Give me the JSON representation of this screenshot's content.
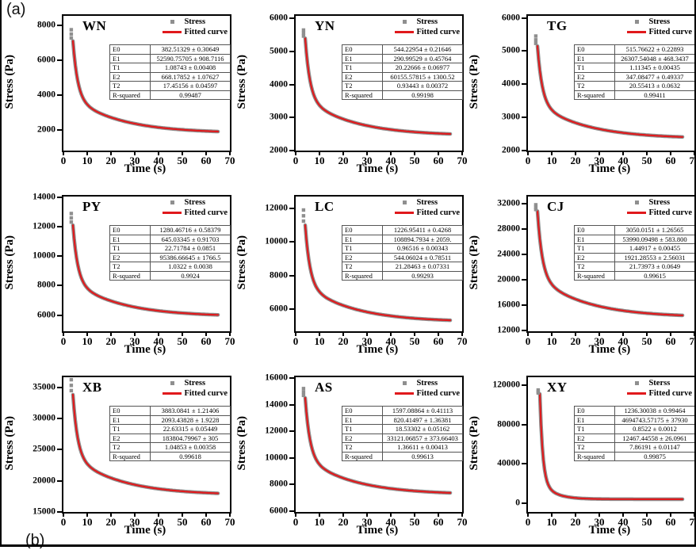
{
  "figure": {
    "panel_label_a": "(a)",
    "panel_label_b": "(b)"
  },
  "colors": {
    "fitted": "#e0191c",
    "stress_marker": "#8f8f8f",
    "axis": "#000000"
  },
  "axes_common": {
    "x_label": "Time (s)",
    "y_label": "Stress (Pa)",
    "x_range": [
      0,
      70
    ],
    "x_ticks": [
      0,
      10,
      20,
      30,
      40,
      50,
      60,
      70
    ]
  },
  "table_param_names": [
    "E0",
    "E1",
    "T1",
    "E2",
    "T2",
    "R-squared"
  ],
  "chart_data": [
    {
      "type": "line",
      "name": "WN",
      "legend_stress": "Stress",
      "legend_fitted": "Fitted curve",
      "y_ticks": [
        2000,
        4000,
        6000,
        8000
      ],
      "y_range": [
        800,
        8550
      ],
      "table": [
        [
          "E0",
          "382.51329 ± 0.30649"
        ],
        [
          "E1",
          "52590.75705 ± 908.7116"
        ],
        [
          "T1",
          "1.08743 ± 0.00408"
        ],
        [
          "E2",
          "668.17852 ± 1.07627"
        ],
        [
          "T2",
          "17.45156 ± 0.04597"
        ],
        [
          "R-squared",
          "0.99487"
        ]
      ],
      "curve": {
        "t0": 4,
        "t1": 65,
        "peak": 7750,
        "start": 7100,
        "end": 1800,
        "tau1": 2.0,
        "tau2": 20,
        "w": 0.62
      }
    },
    {
      "type": "line",
      "name": "YN",
      "legend_stress": "Stress",
      "legend_fitted": "Fitted curve",
      "y_ticks": [
        2000,
        3000,
        4000,
        5000,
        6000
      ],
      "y_range": [
        2000,
        6080
      ],
      "table": [
        [
          "E0",
          "544.22954 ± 0.21646"
        ],
        [
          "E1",
          "290.99529 ± 0.45764"
        ],
        [
          "T1",
          "20.22666 ± 0.06977"
        ],
        [
          "E2",
          "60155.57815 ± 1300.52"
        ],
        [
          "T2",
          "0.93443 ± 0.00372"
        ],
        [
          "R-squared",
          "0.99198"
        ]
      ],
      "curve": {
        "t0": 4,
        "t1": 65,
        "peak": 5650,
        "start": 5400,
        "end": 2450,
        "tau1": 2.0,
        "tau2": 20,
        "w": 0.62
      }
    },
    {
      "type": "line",
      "name": "TG",
      "legend_stress": "Stress",
      "legend_fitted": "Fitted curve",
      "y_ticks": [
        2000,
        3000,
        4000,
        5000,
        6000
      ],
      "y_range": [
        2000,
        6060
      ],
      "table": [
        [
          "E0",
          "515.76622 ± 0.22893"
        ],
        [
          "E1",
          "26307.54048 ± 468.3437"
        ],
        [
          "T1",
          "1.11345 ± 0.00435"
        ],
        [
          "E2",
          "347.08477 ± 0.49337"
        ],
        [
          "T2",
          "20.55413 ± 0.0632"
        ],
        [
          "R-squared",
          "0.99411"
        ]
      ],
      "curve": {
        "t0": 4,
        "t1": 65,
        "peak": 5450,
        "start": 5150,
        "end": 2360,
        "tau1": 2.0,
        "tau2": 20,
        "w": 0.62
      }
    },
    {
      "type": "line",
      "name": "PY",
      "legend_stress": "Stress",
      "legend_fitted": "Fitted curve",
      "y_ticks": [
        6000,
        8000,
        10000,
        12000,
        14000
      ],
      "y_range": [
        4900,
        14050
      ],
      "table": [
        [
          "E0",
          "1280.46716 ± 0.58379"
        ],
        [
          "E1",
          "645.03345 ± 0.91703"
        ],
        [
          "T1",
          "22.71784 ± 0.0851"
        ],
        [
          "E2",
          "95386.66645 ± 1766.5"
        ],
        [
          "T2",
          "1.0322 ± 0.0038"
        ],
        [
          "R-squared",
          "0.9924"
        ]
      ],
      "curve": {
        "t0": 4,
        "t1": 65,
        "peak": 12900,
        "start": 12100,
        "end": 5900,
        "tau1": 2.0,
        "tau2": 20,
        "w": 0.62
      }
    },
    {
      "type": "line",
      "name": "LC",
      "legend_stress": "Stress",
      "legend_fitted": "Fitted curve",
      "y_ticks": [
        6000,
        8000,
        10000,
        12000
      ],
      "y_range": [
        4700,
        12700
      ],
      "table": [
        [
          "E0",
          "1226.95411 ± 0.4268"
        ],
        [
          "E1",
          "108894.7934 ± 2059."
        ],
        [
          "T1",
          "0.96516 ± 0.00343"
        ],
        [
          "E2",
          "544.06024 ± 0.78511"
        ],
        [
          "T2",
          "21.28463 ± 0.07331"
        ],
        [
          "R-squared",
          "0.99293"
        ]
      ],
      "curve": {
        "t0": 4,
        "t1": 65,
        "peak": 11900,
        "start": 11000,
        "end": 5250,
        "tau1": 2.0,
        "tau2": 20,
        "w": 0.62
      }
    },
    {
      "type": "line",
      "name": "CJ",
      "legend_stress": "Stress",
      "legend_fitted": "Fitted curve",
      "y_ticks": [
        12000,
        16000,
        20000,
        24000,
        28000,
        32000
      ],
      "y_range": [
        11900,
        33100
      ],
      "table": [
        [
          "E0",
          "3050.0151 ± 1.26565"
        ],
        [
          "E1",
          "53990.09498 ± 583.800"
        ],
        [
          "T1",
          "1.44917 ± 0.00455"
        ],
        [
          "E2",
          "1921.28553 ± 2.56031"
        ],
        [
          "T2",
          "21.73973 ± 0.0649"
        ],
        [
          "R-squared",
          "0.99615"
        ]
      ],
      "curve": {
        "t0": 4,
        "t1": 65,
        "peak": 31800,
        "start": 30800,
        "end": 14100,
        "tau1": 2.0,
        "tau2": 20,
        "w": 0.62
      }
    },
    {
      "type": "line",
      "name": "XB",
      "legend_stress": "Stress",
      "legend_fitted": "Fitted curve",
      "y_ticks": [
        15000,
        20000,
        25000,
        30000,
        35000
      ],
      "y_range": [
        15000,
        36600
      ],
      "table": [
        [
          "E0",
          "3883.0841 ± 1.21406"
        ],
        [
          "E1",
          "2093.43828 ± 1.9228"
        ],
        [
          "T1",
          "22.63315 ± 0.05449"
        ],
        [
          "E2",
          "183804.79967 ± 305"
        ],
        [
          "T2",
          "1.04853 ± 0.00358"
        ],
        [
          "R-squared",
          "0.99618"
        ]
      ],
      "curve": {
        "t0": 4,
        "t1": 65,
        "peak": 36200,
        "start": 33800,
        "end": 17700,
        "tau1": 2.0,
        "tau2": 20,
        "w": 0.62
      }
    },
    {
      "type": "line",
      "name": "AS",
      "legend_stress": "Stress",
      "legend_fitted": "Fitted curve",
      "y_ticks": [
        6000,
        8000,
        10000,
        12000,
        14000,
        16000
      ],
      "y_range": [
        5950,
        16050
      ],
      "table": [
        [
          "E0",
          "1597.08864 ± 0.41113"
        ],
        [
          "E1",
          "820.41497 ± 1.36381"
        ],
        [
          "T1",
          "18.53302 ± 0.05162"
        ],
        [
          "E2",
          "33121.06857 ± 373.66403"
        ],
        [
          "T2",
          "1.36611 ± 0.00413"
        ],
        [
          "R-squared",
          "0.99613"
        ]
      ],
      "curve": {
        "t0": 4,
        "t1": 65,
        "peak": 15200,
        "start": 14500,
        "end": 7250,
        "tau1": 2.0,
        "tau2": 20,
        "w": 0.62
      }
    },
    {
      "type": "line",
      "name": "XY",
      "legend_stress": "Sterss",
      "legend_fitted": "Fitted curve",
      "y_ticks": [
        0,
        40000,
        80000,
        120000
      ],
      "y_range": [
        -9000,
        128000
      ],
      "table": [
        [
          "E0",
          "1236.30038 ± 0.99464"
        ],
        [
          "E1",
          "4694743.57175 ± 37930"
        ],
        [
          "T1",
          "0.8522 ± 0.0012"
        ],
        [
          "E2",
          "12467.44558 ± 26.0961"
        ],
        [
          "T2",
          "7.86191 ± 0.01147"
        ],
        [
          "R-squared",
          "0.99875"
        ]
      ],
      "curve": {
        "t0": 5,
        "t1": 65,
        "peak": 115000,
        "start": 111000,
        "end": 4000,
        "tau1": 1.2,
        "tau2": 5.5,
        "w": 0.82
      }
    }
  ]
}
